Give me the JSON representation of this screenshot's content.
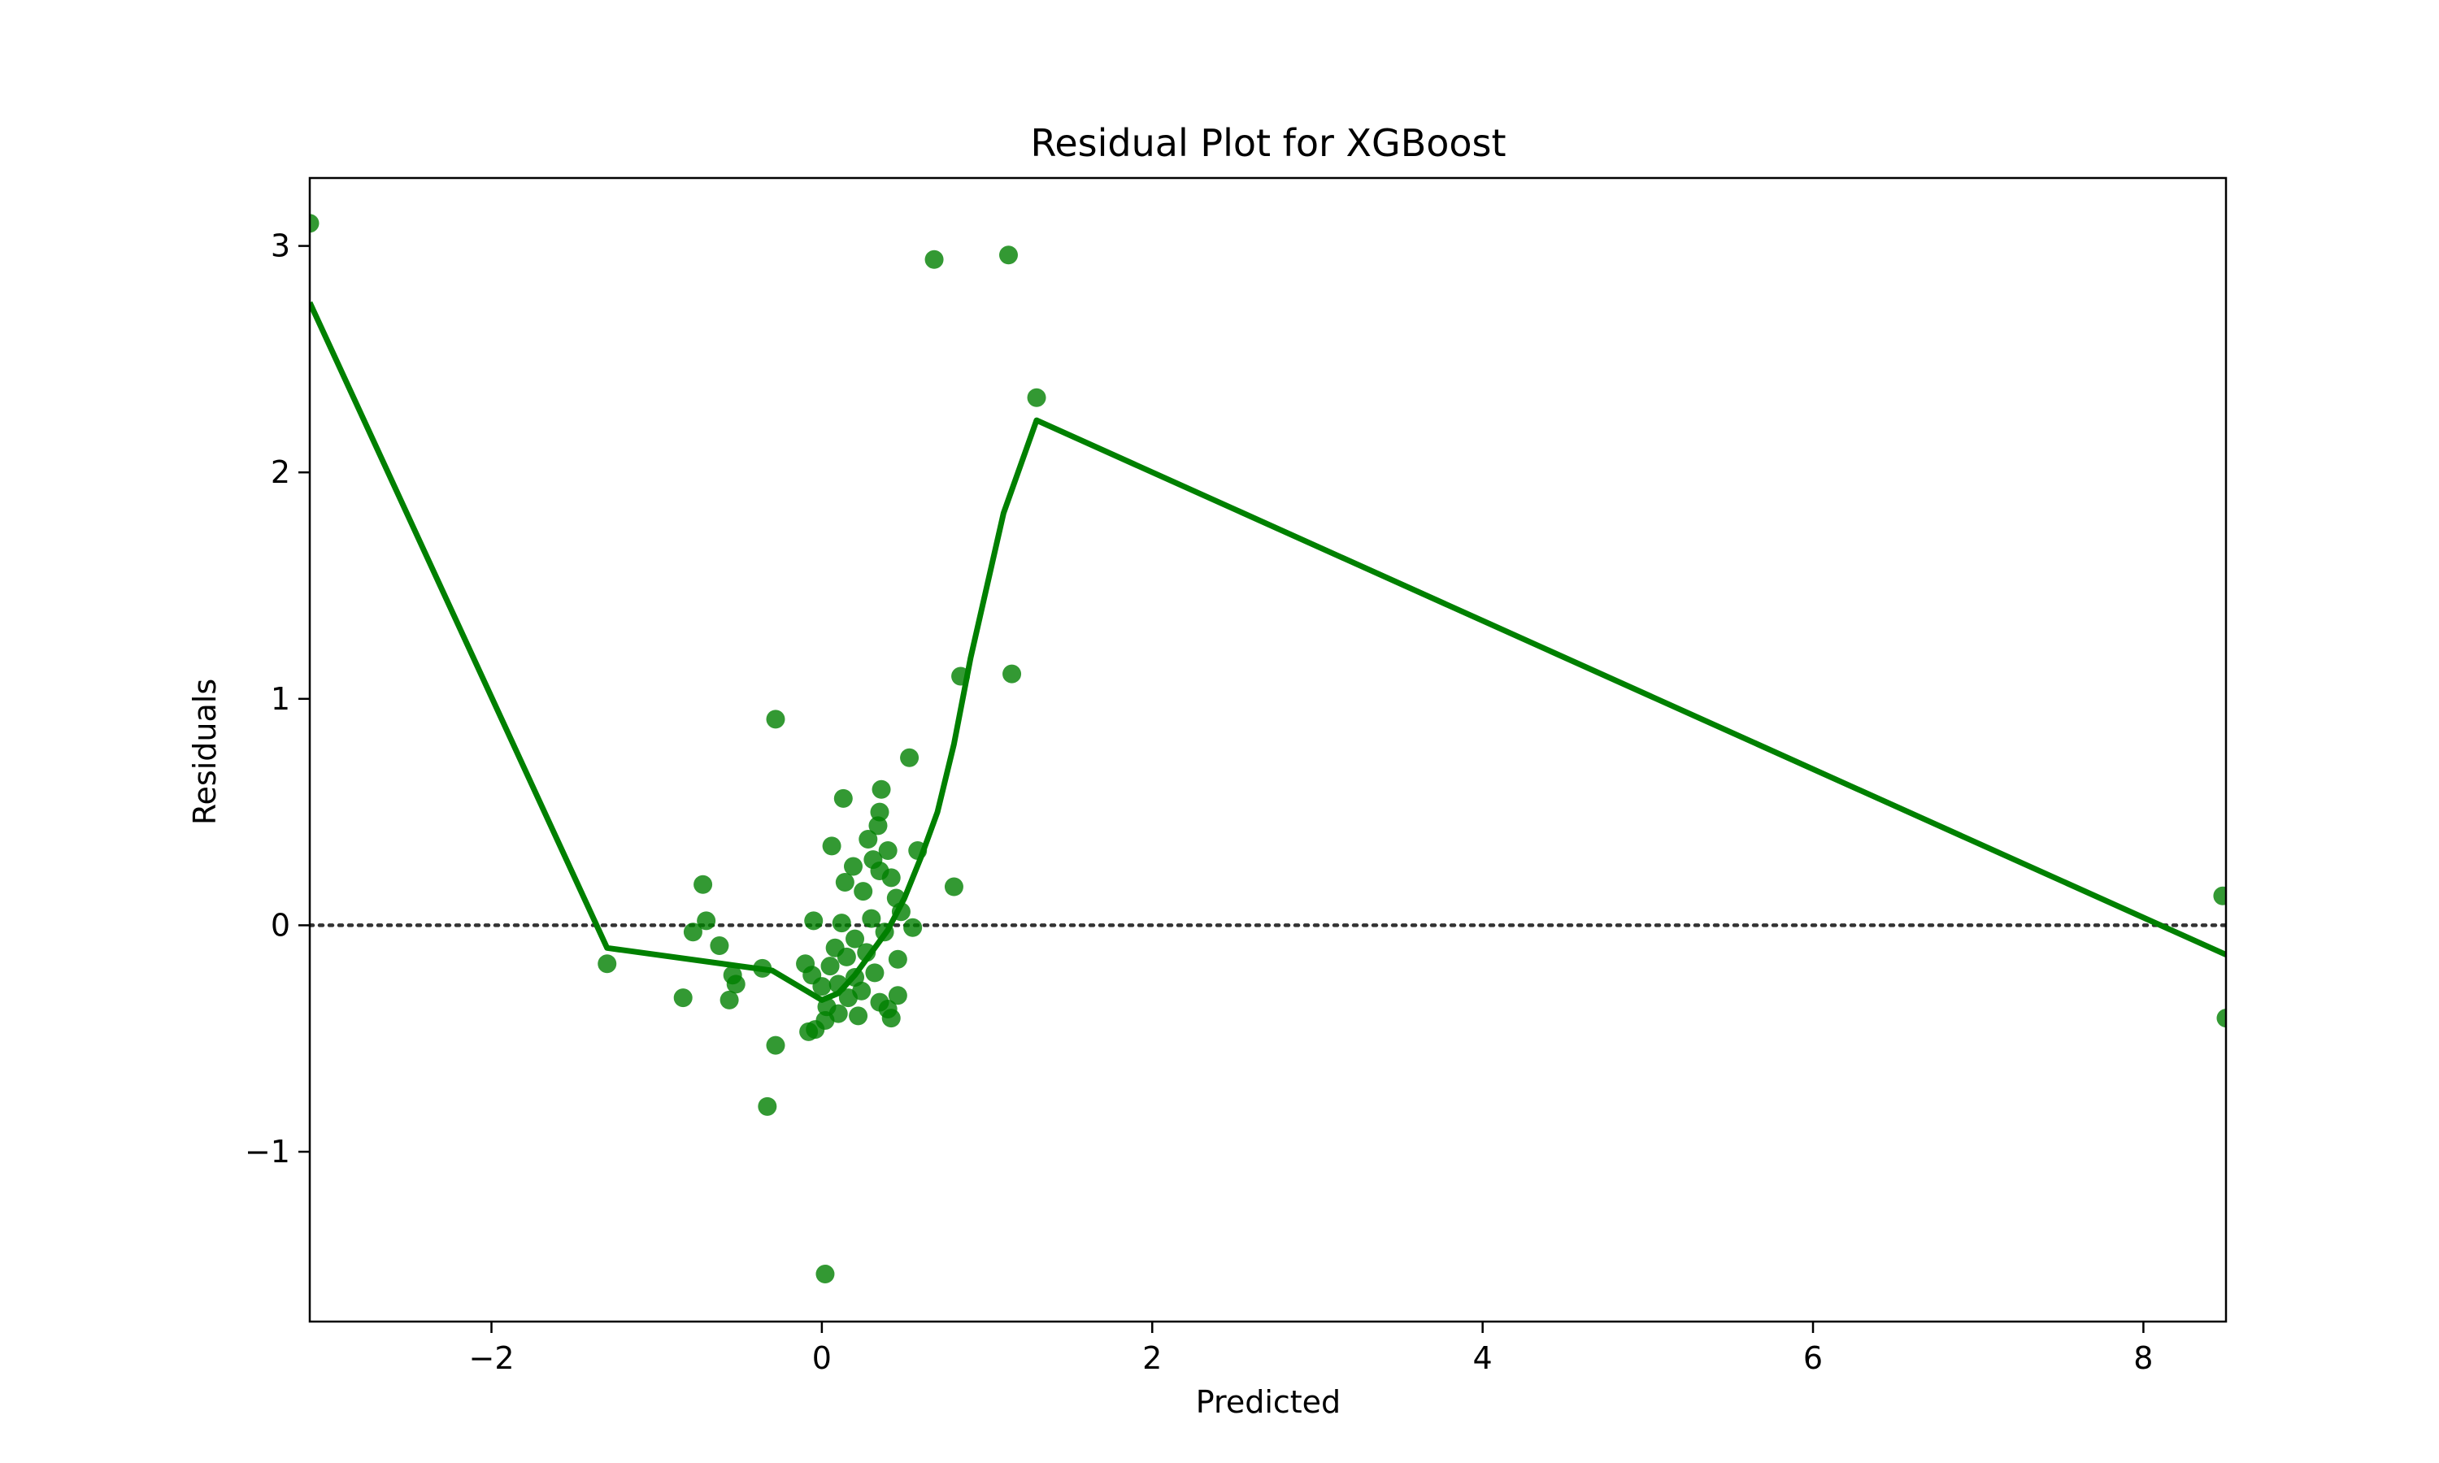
{
  "chart_data": {
    "type": "scatter",
    "title": "Residual Plot for XGBoost",
    "xlabel": "Predicted",
    "ylabel": "Residuals",
    "xlim": [
      -3.1,
      8.5
    ],
    "ylim": [
      -1.75,
      3.3
    ],
    "x_ticks": [
      {
        "value": -2,
        "label": "−2"
      },
      {
        "value": 0,
        "label": "0"
      },
      {
        "value": 2,
        "label": "2"
      },
      {
        "value": 4,
        "label": "4"
      },
      {
        "value": 6,
        "label": "6"
      },
      {
        "value": 8,
        "label": "8"
      }
    ],
    "y_ticks": [
      {
        "value": -1,
        "label": "−1"
      },
      {
        "value": 0,
        "label": "0"
      },
      {
        "value": 1,
        "label": "1"
      },
      {
        "value": 2,
        "label": "2"
      },
      {
        "value": 3,
        "label": "3"
      }
    ],
    "grid": false,
    "color": "#008000",
    "zero_line": {
      "y": 0,
      "style": "dotted",
      "color": "#333333"
    },
    "points": [
      [
        -3.1,
        3.1
      ],
      [
        0.68,
        2.94
      ],
      [
        1.13,
        2.96
      ],
      [
        1.3,
        2.33
      ],
      [
        0.84,
        1.1
      ],
      [
        1.15,
        1.11
      ],
      [
        -0.28,
        0.91
      ],
      [
        0.53,
        0.74
      ],
      [
        0.36,
        0.6
      ],
      [
        0.13,
        0.56
      ],
      [
        0.35,
        0.5
      ],
      [
        0.34,
        0.44
      ],
      [
        0.28,
        0.38
      ],
      [
        0.06,
        0.35
      ],
      [
        0.4,
        0.33
      ],
      [
        0.58,
        0.33
      ],
      [
        0.31,
        0.29
      ],
      [
        0.19,
        0.26
      ],
      [
        0.35,
        0.24
      ],
      [
        0.42,
        0.21
      ],
      [
        0.14,
        0.19
      ],
      [
        0.8,
        0.17
      ],
      [
        0.25,
        0.15
      ],
      [
        0.45,
        0.12
      ],
      [
        -0.72,
        0.18
      ],
      [
        -0.7,
        0.02
      ],
      [
        -0.78,
        -0.03
      ],
      [
        -0.05,
        0.02
      ],
      [
        0.12,
        0.01
      ],
      [
        0.3,
        0.03
      ],
      [
        0.55,
        -0.01
      ],
      [
        -0.62,
        -0.09
      ],
      [
        0.2,
        -0.06
      ],
      [
        0.38,
        -0.03
      ],
      [
        0.48,
        0.06
      ],
      [
        0.08,
        -0.1
      ],
      [
        0.27,
        -0.12
      ],
      [
        0.46,
        -0.15
      ],
      [
        0.15,
        -0.14
      ],
      [
        -1.3,
        -0.17
      ],
      [
        -0.36,
        -0.19
      ],
      [
        -0.1,
        -0.17
      ],
      [
        0.05,
        -0.18
      ],
      [
        -0.54,
        -0.22
      ],
      [
        -0.52,
        -0.26
      ],
      [
        -0.06,
        -0.22
      ],
      [
        0.2,
        -0.23
      ],
      [
        0.32,
        -0.21
      ],
      [
        0.1,
        -0.26
      ],
      [
        0.0,
        -0.27
      ],
      [
        0.24,
        -0.29
      ],
      [
        0.46,
        -0.31
      ],
      [
        -0.84,
        -0.32
      ],
      [
        -0.56,
        -0.33
      ],
      [
        0.16,
        -0.32
      ],
      [
        0.35,
        -0.34
      ],
      [
        0.03,
        -0.36
      ],
      [
        0.4,
        -0.37
      ],
      [
        0.1,
        -0.39
      ],
      [
        0.22,
        -0.4
      ],
      [
        0.42,
        -0.41
      ],
      [
        0.02,
        -0.42
      ],
      [
        -0.04,
        -0.46
      ],
      [
        -0.08,
        -0.47
      ],
      [
        -0.28,
        -0.53
      ],
      [
        -0.33,
        -0.8
      ],
      [
        0.02,
        -1.54
      ],
      [
        8.48,
        0.13
      ],
      [
        8.5,
        -0.41
      ]
    ],
    "lowess_line": [
      [
        -3.1,
        2.75
      ],
      [
        -1.3,
        -0.1
      ],
      [
        -0.5,
        -0.18
      ],
      [
        -0.3,
        -0.2
      ],
      [
        0.0,
        -0.33
      ],
      [
        0.1,
        -0.3
      ],
      [
        0.2,
        -0.22
      ],
      [
        0.3,
        -0.12
      ],
      [
        0.4,
        -0.02
      ],
      [
        0.5,
        0.12
      ],
      [
        0.6,
        0.3
      ],
      [
        0.7,
        0.5
      ],
      [
        0.8,
        0.8
      ],
      [
        0.9,
        1.18
      ],
      [
        1.1,
        1.82
      ],
      [
        1.3,
        2.23
      ],
      [
        8.5,
        -0.13
      ]
    ]
  }
}
